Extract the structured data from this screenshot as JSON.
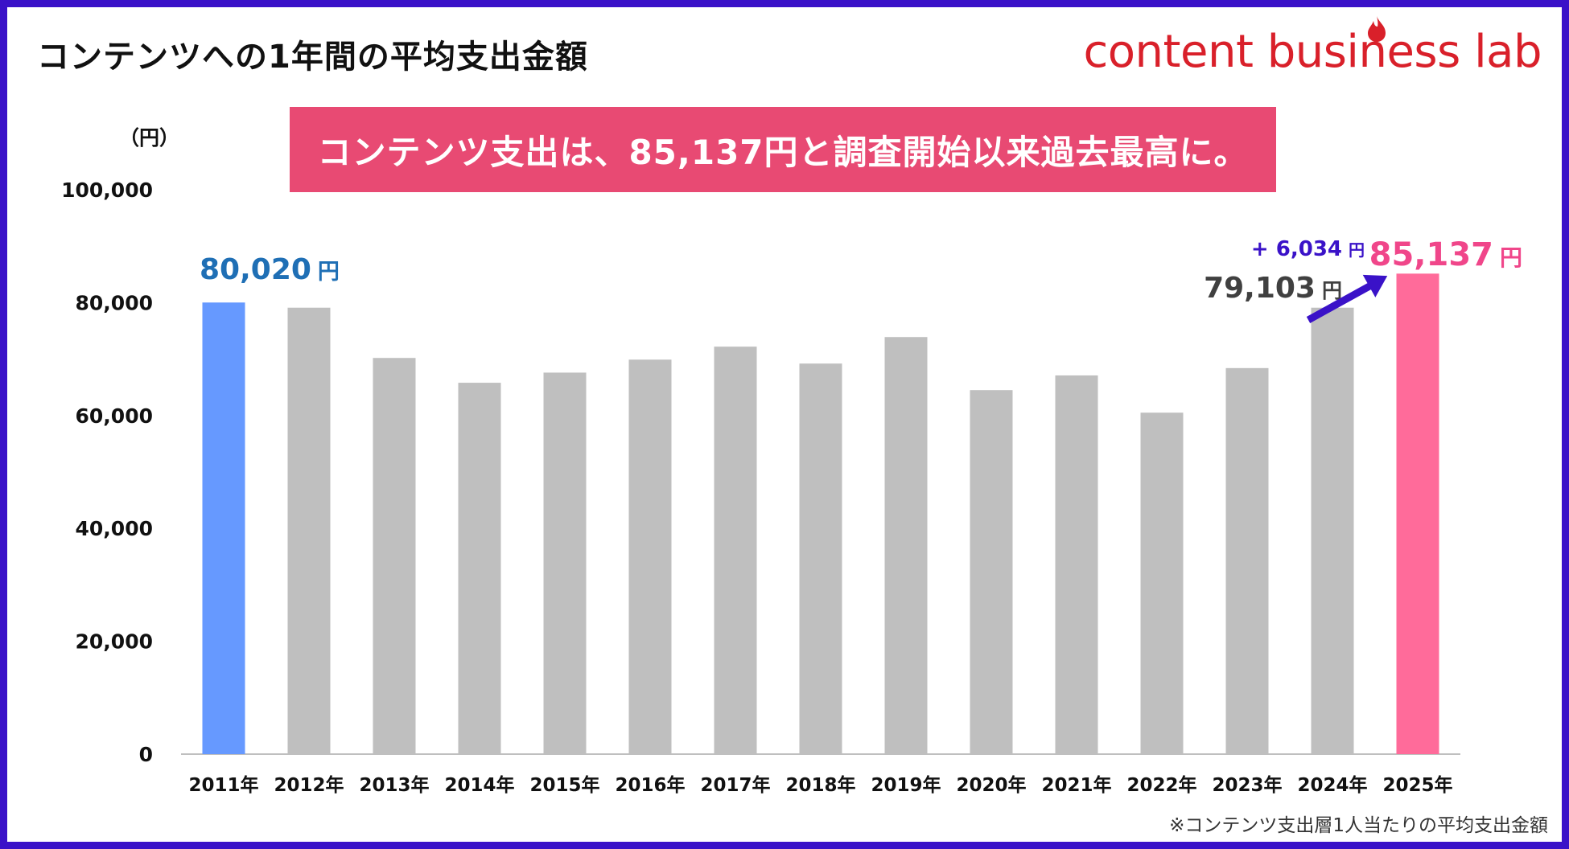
{
  "page": {
    "title": "コンテンツへの1年間の平均支出金額"
  },
  "brand": {
    "logo_text": "content business lab",
    "color": "#d9202a",
    "icon": "flame-drop-icon"
  },
  "banner": {
    "text": "コンテンツ支出は、85,137円と調査開始以来過去最高に。",
    "color": "#e84a73"
  },
  "footnote": "※コンテンツ支出層1人当たりの平均支出金額",
  "frame_color": "#3a12c8",
  "chart_data": {
    "type": "bar",
    "title": "",
    "ylabel": "（円）",
    "xlabel": "",
    "ylim": [
      0,
      100000
    ],
    "yticks": [
      0,
      20000,
      40000,
      60000,
      80000,
      100000
    ],
    "ytick_labels": [
      "0",
      "20,000",
      "40,000",
      "60,000",
      "80,000",
      "100,000"
    ],
    "categories": [
      "2011年",
      "2012年",
      "2013年",
      "2014年",
      "2015年",
      "2016年",
      "2017年",
      "2018年",
      "2019年",
      "2020年",
      "2021年",
      "2022年",
      "2023年",
      "2024年",
      "2025年"
    ],
    "values": [
      80020,
      79103,
      70200,
      65800,
      67600,
      69900,
      72200,
      69200,
      73900,
      64500,
      67100,
      60500,
      68400,
      79103,
      85137
    ],
    "colors": [
      "#6699ff",
      "#bfbfbf",
      "#bfbfbf",
      "#bfbfbf",
      "#bfbfbf",
      "#bfbfbf",
      "#bfbfbf",
      "#bfbfbf",
      "#bfbfbf",
      "#bfbfbf",
      "#bfbfbf",
      "#bfbfbf",
      "#bfbfbf",
      "#bfbfbf",
      "#ff6b9a"
    ],
    "grid": false,
    "annotations": [
      {
        "category": "2011年",
        "value_text": "80,020",
        "unit": "円",
        "color": "#1f6fb5"
      },
      {
        "category": "2024年",
        "value_text": "79,103",
        "unit": "円",
        "color": "#404040"
      },
      {
        "category": "2025年",
        "value_text": "85,137",
        "unit": "円",
        "color": "#f0468a"
      },
      {
        "value_text": "+ 6,034",
        "unit": "円",
        "color": "#3a12c8",
        "arrow": "2024年→2025年"
      }
    ]
  }
}
